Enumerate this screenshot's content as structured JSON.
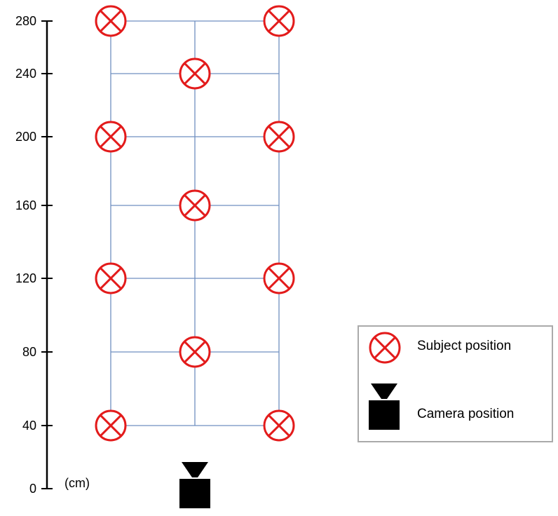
{
  "axis": {
    "unit": "(cm)",
    "ticks": [
      {
        "value": 0,
        "label": "0"
      },
      {
        "value": 40,
        "label": "40"
      },
      {
        "value": 80,
        "label": "80"
      },
      {
        "value": 120,
        "label": "120"
      },
      {
        "value": 160,
        "label": "160"
      },
      {
        "value": 200,
        "label": "200"
      },
      {
        "value": 240,
        "label": "240"
      },
      {
        "value": 280,
        "label": "280"
      }
    ]
  },
  "subject_positions": [
    {
      "column": "left",
      "height": 280
    },
    {
      "column": "right",
      "height": 280
    },
    {
      "column": "center",
      "height": 240
    },
    {
      "column": "left",
      "height": 200
    },
    {
      "column": "right",
      "height": 200
    },
    {
      "column": "center",
      "height": 160
    },
    {
      "column": "left",
      "height": 120
    },
    {
      "column": "right",
      "height": 120
    },
    {
      "column": "center",
      "height": 80
    },
    {
      "column": "left",
      "height": 40
    },
    {
      "column": "right",
      "height": 40
    }
  ],
  "camera_position": {
    "column": "center",
    "height": 0
  },
  "legend": {
    "subject_label": "Subject position",
    "camera_label": "Camera position"
  },
  "colors": {
    "marker": "#e31b1b",
    "grid": "#6f8fc0",
    "camera": "#000000",
    "axis": "#000000",
    "legend_border": "#aaaaaa"
  }
}
